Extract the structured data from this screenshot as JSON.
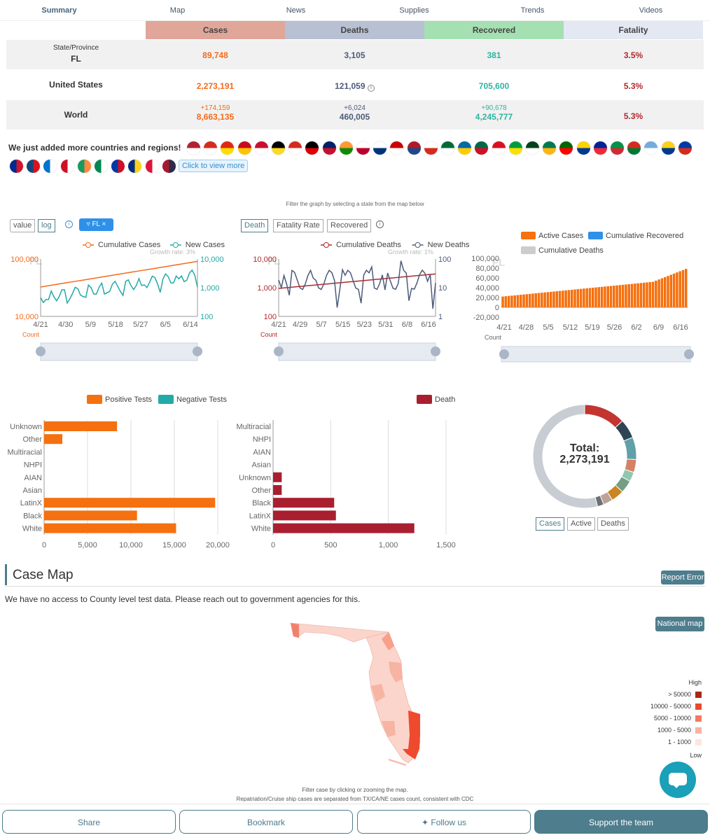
{
  "nav": [
    "Summary",
    "Map",
    "News",
    "Supplies",
    "Trends",
    "Videos"
  ],
  "headers": {
    "cases": "Cases",
    "deaths": "Deaths",
    "recovered": "Recovered",
    "fatality": "Fatality"
  },
  "fl": {
    "label_top": "State/Province",
    "label": "FL",
    "cases": "89,748",
    "deaths": "3,105",
    "recovered": "381",
    "fatality": "3.5%"
  },
  "us": {
    "label": "United States",
    "cases": "2,273,191",
    "deaths": "121,059",
    "recovered": "705,600",
    "fatality": "5.3%"
  },
  "world": {
    "label": "World",
    "cases_new": "+174,159",
    "cases": "8,663,135",
    "deaths_new": "+6,024",
    "deaths": "460,005",
    "recovered_new": "+90,678",
    "recovered": "4,245,777",
    "fatality": "5.3%"
  },
  "countries": {
    "title": "We just added more countries and regions!",
    "view_more": "Click to view more"
  },
  "filter_note": "Filter the graph by selecting a state from the map below",
  "chart1": {
    "toggle_value": "value",
    "toggle_log": "log",
    "filter_chip": "FL",
    "legend_cum": "Cumulative Cases",
    "legend_new": "New Cases",
    "growth": "Growth rate: 3%",
    "watermark": "FL",
    "y_left": [
      "100,000",
      "10,000"
    ],
    "y_right": [
      "10,000",
      "1,000",
      "100"
    ],
    "x": [
      "4/21",
      "4/30",
      "5/9",
      "5/18",
      "5/27",
      "6/5",
      "6/14"
    ],
    "count": "Count"
  },
  "chart2": {
    "tab_death": "Death",
    "tab_fatality": "Fatality Rate",
    "tab_recovered": "Recovered",
    "legend_cum": "Cumulative Deaths",
    "legend_new": "New Deaths",
    "growth": "Growth rate: 1%",
    "watermark": "FL",
    "y_left": [
      "10,000",
      "1,000",
      "100"
    ],
    "y_right": [
      "100",
      "10",
      "1"
    ],
    "x": [
      "4/21",
      "4/29",
      "5/7",
      "5/15",
      "5/23",
      "5/31",
      "6/8",
      "6/16"
    ],
    "count": "Count"
  },
  "chart3": {
    "legend_active": "Active Cases",
    "legend_recovered": "Cumulative Recovered",
    "legend_deaths": "Cumulative Deaths",
    "watermark": "FL",
    "y": [
      "100,000",
      "80,000",
      "60,000",
      "40,000",
      "20,000",
      "0",
      "-20,000"
    ],
    "x": [
      "4/21",
      "4/28",
      "5/5",
      "5/12",
      "5/19",
      "5/26",
      "6/2",
      "6/9",
      "6/16"
    ],
    "count": "Count"
  },
  "chart_data": [
    {
      "type": "bar",
      "title": "",
      "legend": [
        "Positive Tests",
        "Negative Tests"
      ],
      "categories": [
        "Unknown",
        "Other",
        "Multiracial",
        "NHPI",
        "AIAN",
        "Asian",
        "LatinX",
        "Black",
        "White"
      ],
      "series": [
        {
          "name": "Positive Tests",
          "values": [
            8400,
            2100,
            0,
            0,
            0,
            0,
            19700,
            10700,
            15200
          ]
        }
      ],
      "xticks": [
        "0",
        "5,000",
        "10,000",
        "15,000",
        "20,000"
      ],
      "xlim": [
        0,
        20000
      ]
    },
    {
      "type": "bar",
      "title": "",
      "legend": [
        "Death"
      ],
      "categories": [
        "Multiracial",
        "NHPI",
        "AIAN",
        "Asian",
        "Unknown",
        "Other",
        "Black",
        "LatinX",
        "White"
      ],
      "series": [
        {
          "name": "Death",
          "values": [
            0,
            0,
            0,
            0,
            75,
            75,
            530,
            545,
            1225
          ]
        }
      ],
      "xticks": [
        "0",
        "500",
        "1,000",
        "1,500"
      ],
      "xlim": [
        0,
        1500
      ]
    },
    {
      "type": "pie",
      "title": "Total:",
      "total": "2,273,191",
      "values": [
        13,
        6,
        7,
        4,
        3,
        4,
        4,
        3,
        2,
        54
      ],
      "colors": [
        "#c23531",
        "#2f4554",
        "#61a0a8",
        "#d48265",
        "#91c7ae",
        "#749f83",
        "#ca8622",
        "#bda29a",
        "#6e7074",
        "#c8cdd3"
      ]
    }
  ],
  "donut_tabs": [
    "Cases",
    "Active",
    "Deaths"
  ],
  "casemap": {
    "title": "Case Map",
    "report": "Report Error",
    "note": "We have no access to County level test data. Please reach out to government agencies for this.",
    "national": "National map",
    "legend_high": "High",
    "legend_low": "Low",
    "legend": [
      {
        "label": "> 50000",
        "color": "#a52a12"
      },
      {
        "label": "10000 - 50000",
        "color": "#e84a2e"
      },
      {
        "label": "5000 - 10000",
        "color": "#f27a5e"
      },
      {
        "label": "1000 - 5000",
        "color": "#f7b4a2"
      },
      {
        "label": "1 - 1000",
        "color": "#fde6dd"
      }
    ],
    "filter_note": "Filter case by clicking or zooming the map.",
    "cruise_note": "Repatriation/Cruise ship cases are separated from TX/CA/NE cases count, consistent with CDC"
  },
  "bottom": {
    "share": "Share",
    "bookmark": "Bookmark",
    "follow": "Follow us",
    "support": "Support the team"
  }
}
